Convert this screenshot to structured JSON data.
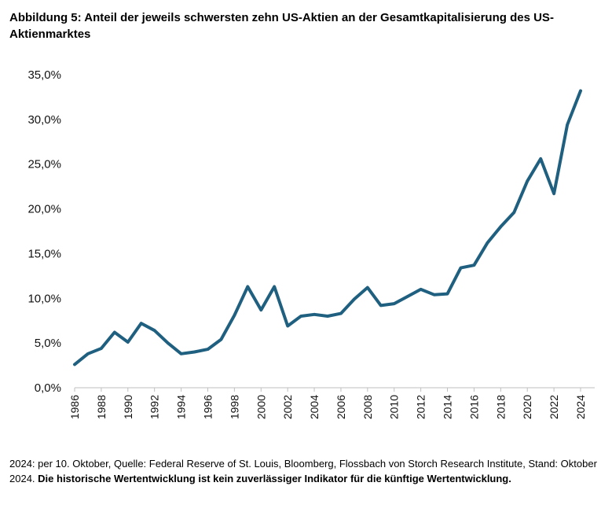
{
  "title": "Abbildung 5: Anteil der jeweils schwersten zehn US-Aktien an der Gesamtkapitalisierung des US-Aktienmarktes",
  "footer": {
    "note": "2024: per 10. Oktober, Quelle: Federal Reserve of St. Louis, Bloomberg, Flossbach von Storch Research Institute, Stand: Oktober 2024. ",
    "disclaimer": "Die historische Wertentwicklung ist kein zuverlässiger Indikator für die künftige Wertentwicklung."
  },
  "chart_data": {
    "type": "line",
    "title": "",
    "xlabel": "",
    "ylabel": "",
    "x": [
      1986,
      1987,
      1988,
      1989,
      1990,
      1991,
      1992,
      1993,
      1994,
      1995,
      1996,
      1997,
      1998,
      1999,
      2000,
      2001,
      2002,
      2003,
      2004,
      2005,
      2006,
      2007,
      2008,
      2009,
      2010,
      2011,
      2012,
      2013,
      2014,
      2015,
      2016,
      2017,
      2018,
      2019,
      2020,
      2021,
      2022,
      2023,
      2024
    ],
    "series": [
      {
        "name": "",
        "color": "#1f5f7f",
        "values": [
          2.6,
          3.8,
          4.4,
          6.2,
          5.1,
          7.2,
          6.4,
          5.0,
          3.8,
          4.0,
          4.3,
          5.4,
          8.1,
          11.3,
          8.7,
          11.3,
          6.9,
          8.0,
          8.2,
          8.0,
          8.3,
          9.9,
          11.2,
          9.2,
          9.4,
          10.2,
          11.0,
          10.4,
          10.5,
          13.4,
          13.7,
          16.2,
          18.0,
          19.6,
          23.1,
          25.6,
          21.7,
          29.4,
          33.2
        ]
      }
    ],
    "xticks": [
      "1986",
      "1988",
      "1990",
      "1992",
      "1994",
      "1996",
      "1998",
      "2000",
      "2002",
      "2004",
      "2006",
      "2008",
      "2010",
      "2012",
      "2014",
      "2016",
      "2018",
      "2020",
      "2022",
      "2024"
    ],
    "yticks": [
      "0,0%",
      "5,0%",
      "10,0%",
      "15,0%",
      "20,0%",
      "25,0%",
      "30,0%",
      "35,0%"
    ],
    "ylim": [
      0,
      35
    ],
    "grid": false,
    "legend": "none"
  }
}
